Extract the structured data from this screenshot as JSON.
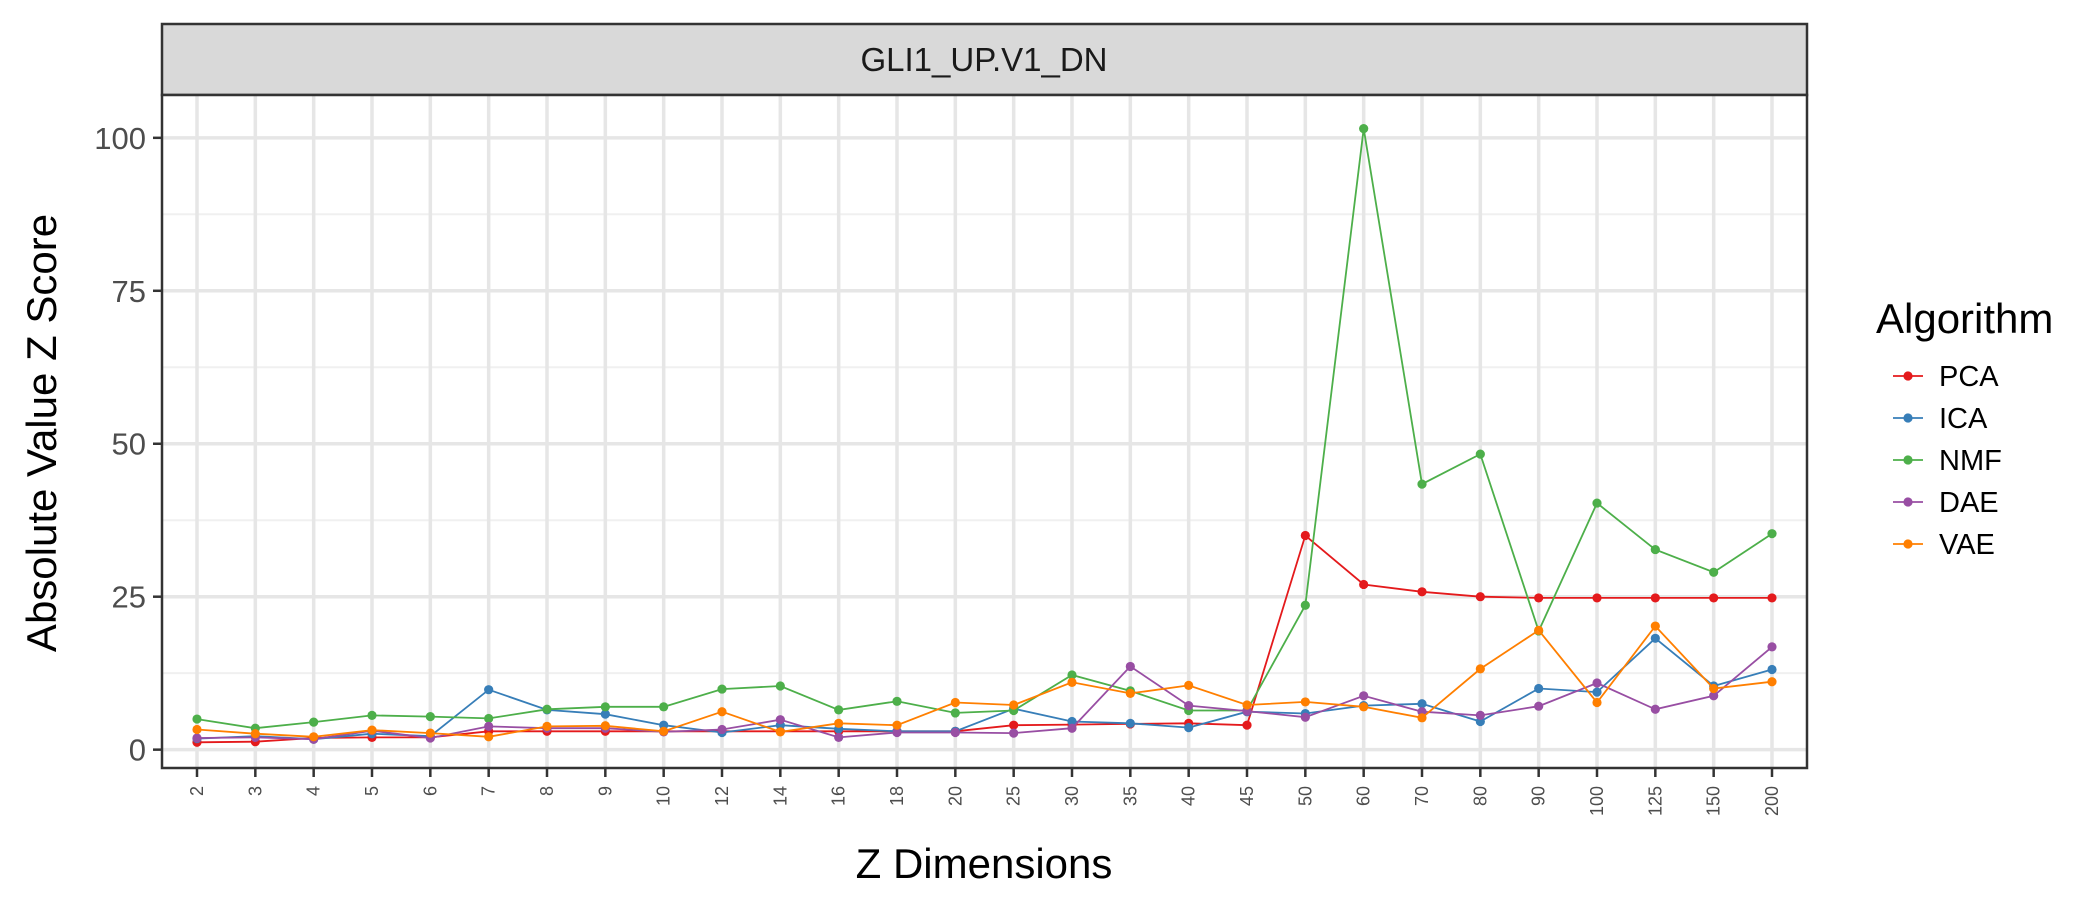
{
  "chart_data": {
    "type": "line",
    "facet_title": "GLI1_UP.V1_DN",
    "xlabel": "Z Dimensions",
    "ylabel": "Absolute Value Z Score",
    "x": [
      "2",
      "3",
      "4",
      "5",
      "6",
      "7",
      "8",
      "9",
      "10",
      "12",
      "14",
      "16",
      "18",
      "20",
      "25",
      "30",
      "35",
      "40",
      "45",
      "50",
      "60",
      "70",
      "80",
      "90",
      "100",
      "125",
      "150",
      "200"
    ],
    "ylim": [
      -3,
      107
    ],
    "y_ticks": [
      0,
      25,
      50,
      75,
      100
    ],
    "grid": true,
    "legend": {
      "title": "Algorithm",
      "placement": "right"
    },
    "series": [
      {
        "name": "PCA",
        "color": "#e41a1c",
        "values": [
          1.2,
          1.3,
          1.9,
          2.0,
          2.0,
          3.0,
          3.0,
          3.0,
          3.0,
          3.0,
          3.0,
          3.0,
          3.0,
          3.0,
          4.0,
          4.1,
          4.2,
          4.3,
          4.0,
          35.0,
          27.0,
          25.8,
          25.0,
          24.8,
          24.8,
          24.8,
          24.8,
          24.8
        ]
      },
      {
        "name": "ICA",
        "color": "#377eb8",
        "values": [
          1.8,
          2.2,
          1.7,
          2.6,
          2.2,
          9.8,
          6.5,
          5.8,
          4.0,
          2.8,
          4.0,
          3.4,
          3.0,
          3.0,
          6.7,
          4.6,
          4.3,
          3.6,
          6.2,
          5.9,
          7.2,
          7.5,
          4.6,
          10.0,
          9.4,
          18.2,
          10.4,
          13.1
        ]
      },
      {
        "name": "NMF",
        "color": "#4daf4a",
        "values": [
          5.0,
          3.5,
          4.5,
          5.6,
          5.4,
          5.1,
          6.6,
          7.0,
          7.0,
          9.9,
          10.4,
          6.5,
          7.9,
          6.0,
          6.4,
          12.2,
          9.6,
          6.4,
          6.4,
          23.6,
          101.5,
          43.4,
          48.3,
          19.4,
          40.3,
          32.7,
          29.0,
          35.3
        ]
      },
      {
        "name": "DAE",
        "color": "#984ea3",
        "values": [
          1.9,
          2.0,
          1.7,
          3.1,
          1.9,
          3.8,
          3.5,
          3.5,
          2.9,
          3.3,
          4.9,
          2.0,
          2.8,
          2.8,
          2.7,
          3.5,
          13.6,
          7.2,
          6.3,
          5.3,
          8.8,
          6.2,
          5.6,
          7.1,
          10.9,
          6.6,
          8.8,
          16.8
        ]
      },
      {
        "name": "VAE",
        "color": "#ff7f00",
        "values": [
          3.3,
          2.6,
          2.1,
          3.2,
          2.7,
          2.1,
          3.8,
          3.9,
          3.0,
          6.2,
          2.9,
          4.3,
          4.0,
          7.7,
          7.3,
          11.0,
          9.2,
          10.5,
          7.3,
          7.8,
          7.0,
          5.2,
          13.2,
          19.5,
          7.7,
          20.2,
          10.0,
          11.1
        ]
      }
    ]
  }
}
